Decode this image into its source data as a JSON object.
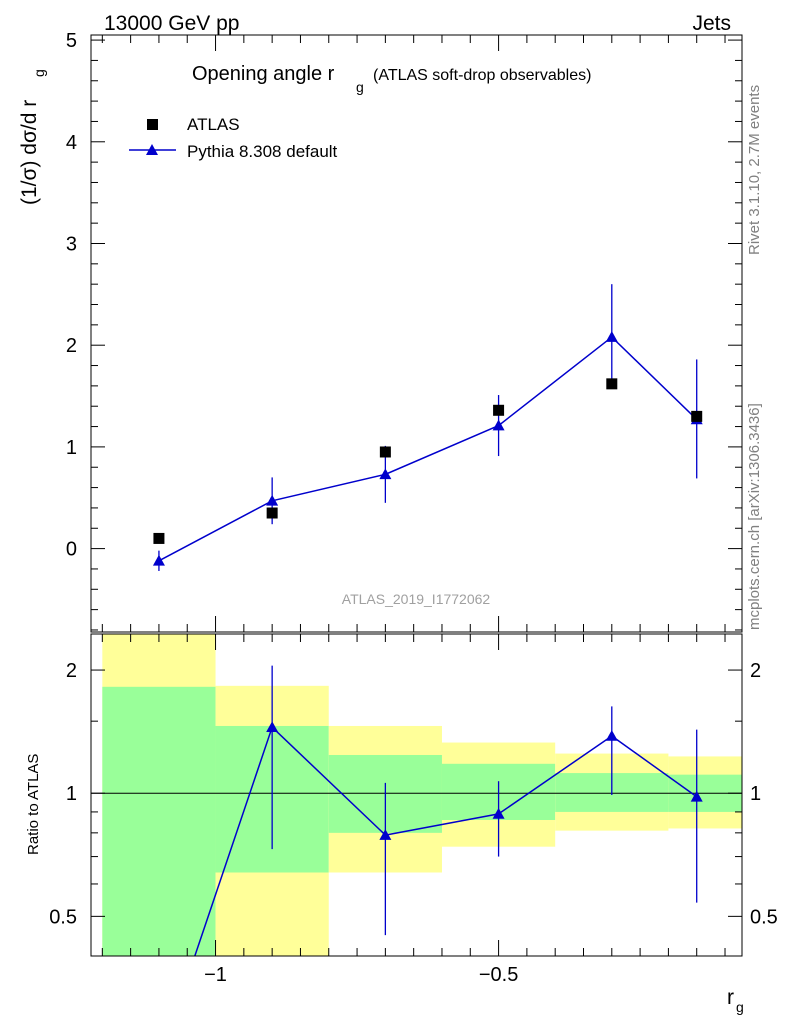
{
  "header": {
    "energy": "13000 GeV pp",
    "category": "Jets"
  },
  "side_labels": {
    "rivet": "Rivet 3.1.10,  2.7M events",
    "mcplots": "mcplots.cern.ch [arXiv:1306.3436]"
  },
  "chart_data": [
    {
      "type": "scatter",
      "title": "Opening angle r_g (ATLAS soft-drop observables)",
      "title_main": "Opening angle r",
      "title_sub": "g",
      "title_tail": "(ATLAS soft-drop observables)",
      "ylabel": "(1/σ) dσ/d r_g",
      "ylabel_main": "(1/σ) dσ/d r",
      "ylabel_sub": "g",
      "analysis_label": "ATLAS_2019_I1772062",
      "xlim": [
        -1.22,
        -0.07
      ],
      "ylim": [
        -0.82,
        5.05
      ],
      "yticks": [
        0,
        1,
        2,
        3,
        4,
        5
      ],
      "legend_position": "top-left",
      "series": [
        {
          "name": "ATLAS",
          "marker": "square",
          "color": "#000000",
          "x": [
            -1.1,
            -0.9,
            -0.7,
            -0.5,
            -0.3,
            -0.15
          ],
          "y": [
            0.1,
            0.35,
            0.95,
            1.36,
            1.62,
            1.3
          ]
        },
        {
          "name": "Pythia 8.308 default",
          "marker": "triangle",
          "color": "#0000cc",
          "x": [
            -1.1,
            -0.9,
            -0.7,
            -0.5,
            -0.3,
            -0.15
          ],
          "y": [
            -0.12,
            0.47,
            0.73,
            1.21,
            2.08,
            1.27
          ],
          "yerr_low": [
            0.1,
            0.23,
            0.28,
            0.3,
            0.5,
            0.58
          ],
          "yerr_high": [
            0.1,
            0.23,
            0.28,
            0.3,
            0.52,
            0.59
          ]
        }
      ]
    },
    {
      "type": "scatter",
      "xlabel": "r_g",
      "xlabel_main": "r",
      "xlabel_sub": "g",
      "ylabel": "Ratio to ATLAS",
      "xlim": [
        -1.22,
        -0.07
      ],
      "ylim": [
        0.4,
        2.45
      ],
      "log_y": true,
      "yticks": [
        0.5,
        1,
        2
      ],
      "ytick_labels": [
        "0.5",
        "1",
        "2"
      ],
      "xticks": [
        -1,
        -0.5
      ],
      "xtick_labels": [
        "−1",
        "−0.5"
      ],
      "reference_line": 1,
      "uncertainty_bands": [
        {
          "x_low": -1.2,
          "x_high": -1.0,
          "green": [
            0.4,
            1.82
          ],
          "yellow": [
            0.4,
            2.45
          ]
        },
        {
          "x_low": -1.0,
          "x_high": -0.8,
          "green": [
            0.64,
            1.46
          ],
          "yellow": [
            0.4,
            1.83
          ]
        },
        {
          "x_low": -0.8,
          "x_high": -0.6,
          "green": [
            0.8,
            1.24
          ],
          "yellow": [
            0.64,
            1.46
          ]
        },
        {
          "x_low": -0.6,
          "x_high": -0.4,
          "green": [
            0.86,
            1.18
          ],
          "yellow": [
            0.74,
            1.33
          ]
        },
        {
          "x_low": -0.4,
          "x_high": -0.2,
          "green": [
            0.9,
            1.12
          ],
          "yellow": [
            0.81,
            1.25
          ]
        },
        {
          "x_low": -0.2,
          "x_high": -0.07,
          "green": [
            0.9,
            1.11
          ],
          "yellow": [
            0.82,
            1.23
          ]
        }
      ],
      "series": [
        {
          "name": "Pythia 8.308 default",
          "color": "#0000cc",
          "marker": "triangle",
          "x": [
            -1.1,
            -0.9,
            -0.7,
            -0.5,
            -0.3,
            -0.15
          ],
          "y": [
            -1.2,
            1.45,
            0.79,
            0.89,
            1.38,
            0.98
          ],
          "yerr_low": [
            null,
            0.72,
            0.34,
            0.19,
            0.39,
            0.44
          ],
          "yerr_high": [
            null,
            0.6,
            0.27,
            0.18,
            0.25,
            0.45
          ],
          "note_first_point_offscale": true
        }
      ]
    }
  ]
}
